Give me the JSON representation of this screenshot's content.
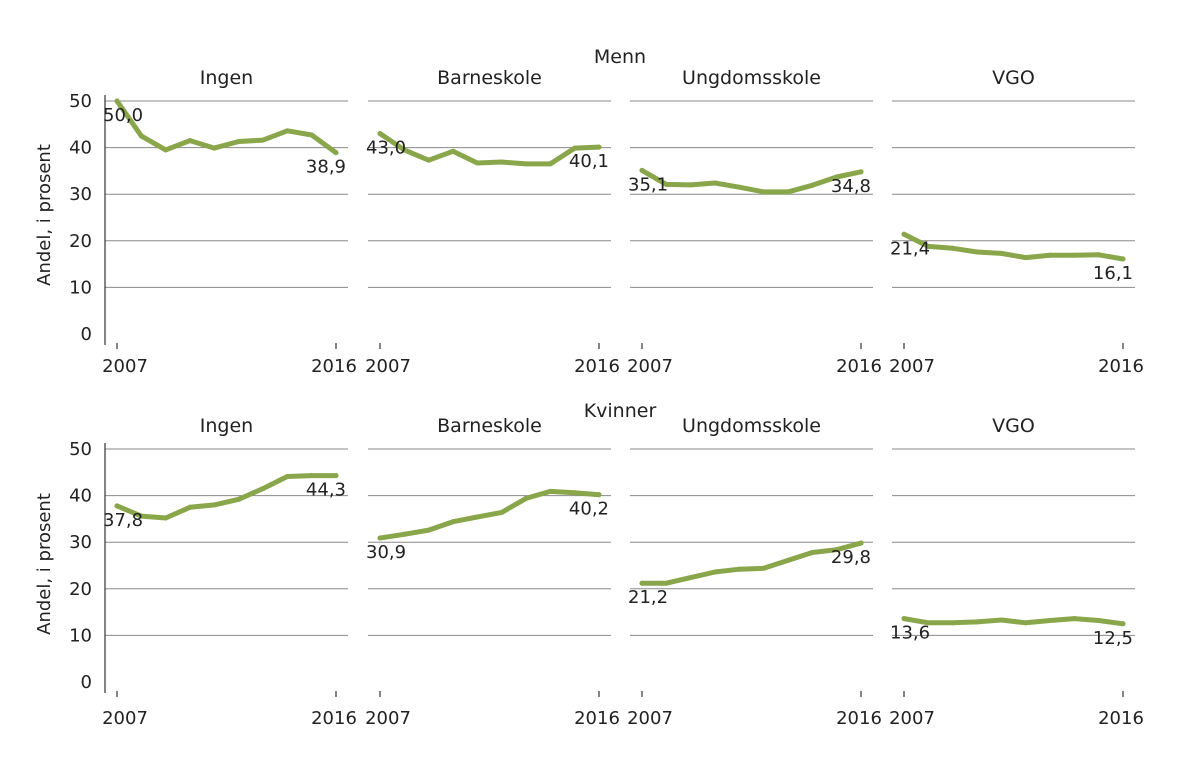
{
  "chart_data": {
    "type": "line",
    "ylabel": "Andel, i prosent",
    "ylim": [
      0,
      50
    ],
    "yticks": [
      0,
      10,
      20,
      30,
      40,
      50
    ],
    "x": [
      2007,
      2008,
      2009,
      2010,
      2011,
      2012,
      2013,
      2014,
      2015,
      2016
    ],
    "xtick_labels": [
      "2007",
      "2016"
    ],
    "line_color": "#8aa64a",
    "groups": [
      {
        "title": "Menn",
        "panels": [
          {
            "title": "Ingen",
            "values": [
              50.0,
              42.5,
              39.5,
              41.5,
              39.9,
              41.3,
              41.6,
              43.6,
              42.7,
              38.9
            ],
            "start_label": "50,0",
            "end_label": "38,9"
          },
          {
            "title": "Barneskole",
            "values": [
              43.0,
              39.5,
              37.3,
              39.2,
              36.7,
              36.9,
              36.5,
              36.5,
              39.9,
              40.1
            ],
            "start_label": "43,0",
            "end_label": "40,1"
          },
          {
            "title": "Ungdomsskole",
            "values": [
              35.1,
              32.1,
              32.0,
              32.4,
              31.5,
              30.5,
              30.5,
              31.9,
              33.7,
              34.8
            ],
            "start_label": "35,1",
            "end_label": "34,8"
          },
          {
            "title": "VGO",
            "values": [
              21.4,
              18.8,
              18.4,
              17.6,
              17.3,
              16.4,
              16.9,
              16.9,
              17.0,
              16.1
            ],
            "start_label": "21,4",
            "end_label": "16,1"
          }
        ]
      },
      {
        "title": "Kvinner",
        "panels": [
          {
            "title": "Ingen",
            "values": [
              37.8,
              35.6,
              35.2,
              37.5,
              38.0,
              39.2,
              41.5,
              44.1,
              44.3,
              44.3
            ],
            "start_label": "37,8",
            "end_label": "44,3"
          },
          {
            "title": "Barneskole",
            "values": [
              30.9,
              31.7,
              32.6,
              34.4,
              35.4,
              36.4,
              39.4,
              40.9,
              40.6,
              40.2
            ],
            "start_label": "30,9",
            "end_label": "40,2"
          },
          {
            "title": "Ungdomsskole",
            "values": [
              21.2,
              21.2,
              22.4,
              23.6,
              24.2,
              24.4,
              26.1,
              27.8,
              28.4,
              29.8
            ],
            "start_label": "21,2",
            "end_label": "29,8"
          },
          {
            "title": "VGO",
            "values": [
              13.6,
              12.7,
              12.7,
              12.9,
              13.3,
              12.7,
              13.2,
              13.6,
              13.2,
              12.5
            ],
            "start_label": "13,6",
            "end_label": "12,5"
          }
        ]
      }
    ]
  }
}
